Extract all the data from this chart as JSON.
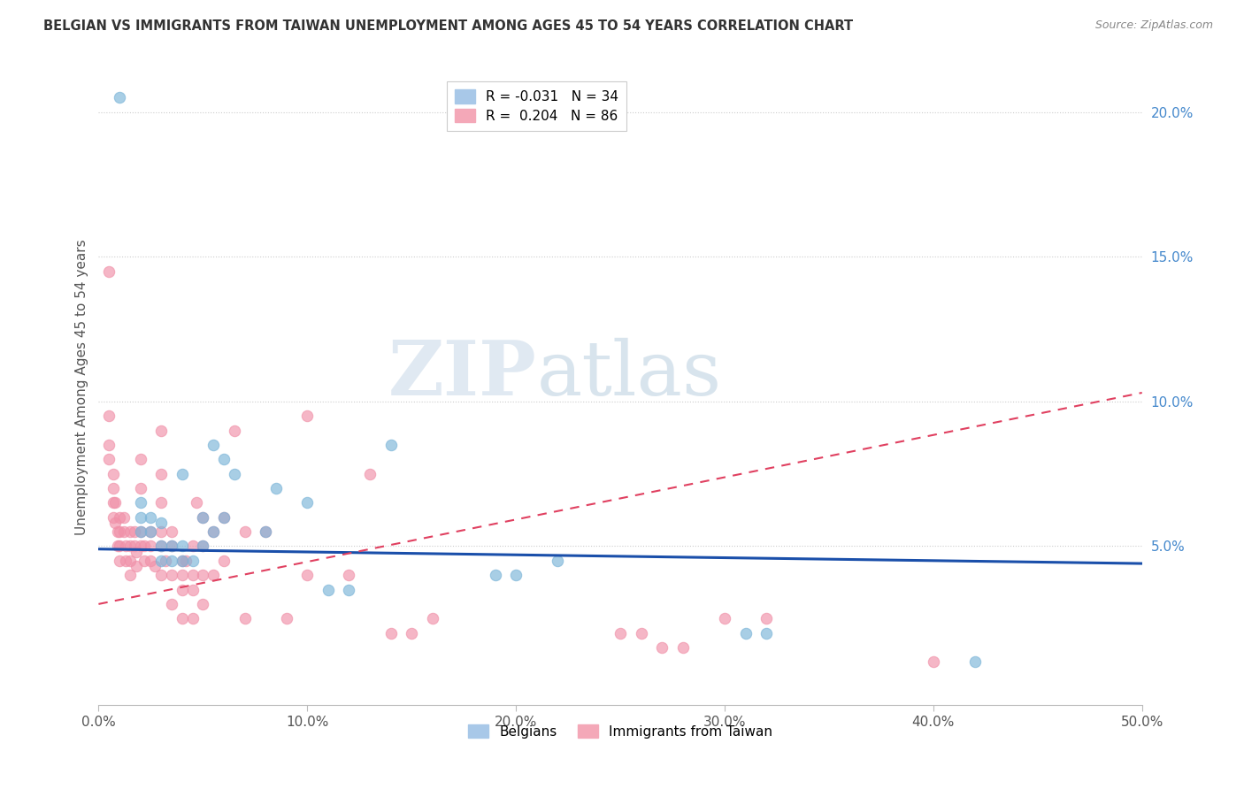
{
  "title": "BELGIAN VS IMMIGRANTS FROM TAIWAN UNEMPLOYMENT AMONG AGES 45 TO 54 YEARS CORRELATION CHART",
  "source": "Source: ZipAtlas.com",
  "ylabel": "Unemployment Among Ages 45 to 54 years",
  "xlim": [
    0.0,
    0.5
  ],
  "ylim": [
    -0.005,
    0.215
  ],
  "xticks": [
    0.0,
    0.1,
    0.2,
    0.3,
    0.4,
    0.5
  ],
  "yticks": [
    0.05,
    0.1,
    0.15,
    0.2
  ],
  "ytick_labels": [
    "5.0%",
    "10.0%",
    "15.0%",
    "20.0%"
  ],
  "xtick_labels": [
    "0.0%",
    "10.0%",
    "20.0%",
    "30.0%",
    "40.0%",
    "50.0%"
  ],
  "belgians_color": "#7ab4d8",
  "taiwan_color": "#f090a8",
  "watermark_zip": "ZIP",
  "watermark_atlas": "atlas",
  "belgians_scatter": [
    [
      0.01,
      0.205
    ],
    [
      0.04,
      0.075
    ],
    [
      0.055,
      0.085
    ],
    [
      0.02,
      0.065
    ],
    [
      0.02,
      0.06
    ],
    [
      0.02,
      0.055
    ],
    [
      0.025,
      0.06
    ],
    [
      0.025,
      0.055
    ],
    [
      0.03,
      0.058
    ],
    [
      0.03,
      0.05
    ],
    [
      0.03,
      0.045
    ],
    [
      0.035,
      0.05
    ],
    [
      0.035,
      0.045
    ],
    [
      0.04,
      0.05
    ],
    [
      0.04,
      0.045
    ],
    [
      0.045,
      0.045
    ],
    [
      0.05,
      0.06
    ],
    [
      0.05,
      0.05
    ],
    [
      0.055,
      0.055
    ],
    [
      0.06,
      0.08
    ],
    [
      0.06,
      0.06
    ],
    [
      0.065,
      0.075
    ],
    [
      0.08,
      0.055
    ],
    [
      0.085,
      0.07
    ],
    [
      0.1,
      0.065
    ],
    [
      0.11,
      0.035
    ],
    [
      0.12,
      0.035
    ],
    [
      0.14,
      0.085
    ],
    [
      0.19,
      0.04
    ],
    [
      0.2,
      0.04
    ],
    [
      0.22,
      0.045
    ],
    [
      0.31,
      0.02
    ],
    [
      0.32,
      0.02
    ],
    [
      0.42,
      0.01
    ]
  ],
  "taiwan_scatter": [
    [
      0.005,
      0.145
    ],
    [
      0.005,
      0.095
    ],
    [
      0.005,
      0.085
    ],
    [
      0.005,
      0.08
    ],
    [
      0.007,
      0.075
    ],
    [
      0.007,
      0.07
    ],
    [
      0.007,
      0.065
    ],
    [
      0.007,
      0.06
    ],
    [
      0.008,
      0.065
    ],
    [
      0.008,
      0.058
    ],
    [
      0.009,
      0.055
    ],
    [
      0.009,
      0.05
    ],
    [
      0.01,
      0.06
    ],
    [
      0.01,
      0.055
    ],
    [
      0.01,
      0.05
    ],
    [
      0.01,
      0.045
    ],
    [
      0.012,
      0.06
    ],
    [
      0.012,
      0.055
    ],
    [
      0.013,
      0.05
    ],
    [
      0.013,
      0.045
    ],
    [
      0.015,
      0.055
    ],
    [
      0.015,
      0.05
    ],
    [
      0.015,
      0.045
    ],
    [
      0.015,
      0.04
    ],
    [
      0.017,
      0.055
    ],
    [
      0.017,
      0.05
    ],
    [
      0.018,
      0.048
    ],
    [
      0.018,
      0.043
    ],
    [
      0.02,
      0.08
    ],
    [
      0.02,
      0.07
    ],
    [
      0.02,
      0.055
    ],
    [
      0.02,
      0.05
    ],
    [
      0.022,
      0.05
    ],
    [
      0.022,
      0.045
    ],
    [
      0.025,
      0.055
    ],
    [
      0.025,
      0.05
    ],
    [
      0.025,
      0.045
    ],
    [
      0.027,
      0.043
    ],
    [
      0.03,
      0.09
    ],
    [
      0.03,
      0.075
    ],
    [
      0.03,
      0.065
    ],
    [
      0.03,
      0.055
    ],
    [
      0.03,
      0.05
    ],
    [
      0.03,
      0.04
    ],
    [
      0.032,
      0.045
    ],
    [
      0.035,
      0.055
    ],
    [
      0.035,
      0.05
    ],
    [
      0.035,
      0.04
    ],
    [
      0.035,
      0.03
    ],
    [
      0.04,
      0.045
    ],
    [
      0.04,
      0.04
    ],
    [
      0.04,
      0.035
    ],
    [
      0.04,
      0.025
    ],
    [
      0.042,
      0.045
    ],
    [
      0.045,
      0.05
    ],
    [
      0.045,
      0.04
    ],
    [
      0.045,
      0.035
    ],
    [
      0.045,
      0.025
    ],
    [
      0.047,
      0.065
    ],
    [
      0.05,
      0.06
    ],
    [
      0.05,
      0.05
    ],
    [
      0.05,
      0.04
    ],
    [
      0.05,
      0.03
    ],
    [
      0.055,
      0.055
    ],
    [
      0.055,
      0.04
    ],
    [
      0.06,
      0.06
    ],
    [
      0.06,
      0.045
    ],
    [
      0.065,
      0.09
    ],
    [
      0.07,
      0.055
    ],
    [
      0.07,
      0.025
    ],
    [
      0.08,
      0.055
    ],
    [
      0.09,
      0.025
    ],
    [
      0.1,
      0.04
    ],
    [
      0.1,
      0.095
    ],
    [
      0.12,
      0.04
    ],
    [
      0.13,
      0.075
    ],
    [
      0.14,
      0.02
    ],
    [
      0.15,
      0.02
    ],
    [
      0.16,
      0.025
    ],
    [
      0.25,
      0.02
    ],
    [
      0.26,
      0.02
    ],
    [
      0.27,
      0.015
    ],
    [
      0.28,
      0.015
    ],
    [
      0.3,
      0.025
    ],
    [
      0.32,
      0.025
    ],
    [
      0.4,
      0.01
    ]
  ],
  "belgians_trend_x": [
    0.0,
    0.5
  ],
  "belgians_trend_y": [
    0.049,
    0.044
  ],
  "taiwan_trend_x": [
    0.0,
    0.5
  ],
  "taiwan_trend_y": [
    0.03,
    0.103
  ],
  "legend_r1": "R = -0.031",
  "legend_n1": "N = 34",
  "legend_r2": "R =  0.204",
  "legend_n2": "N = 86",
  "legend_label1": "Belgians",
  "legend_label2": "Immigrants from Taiwan"
}
